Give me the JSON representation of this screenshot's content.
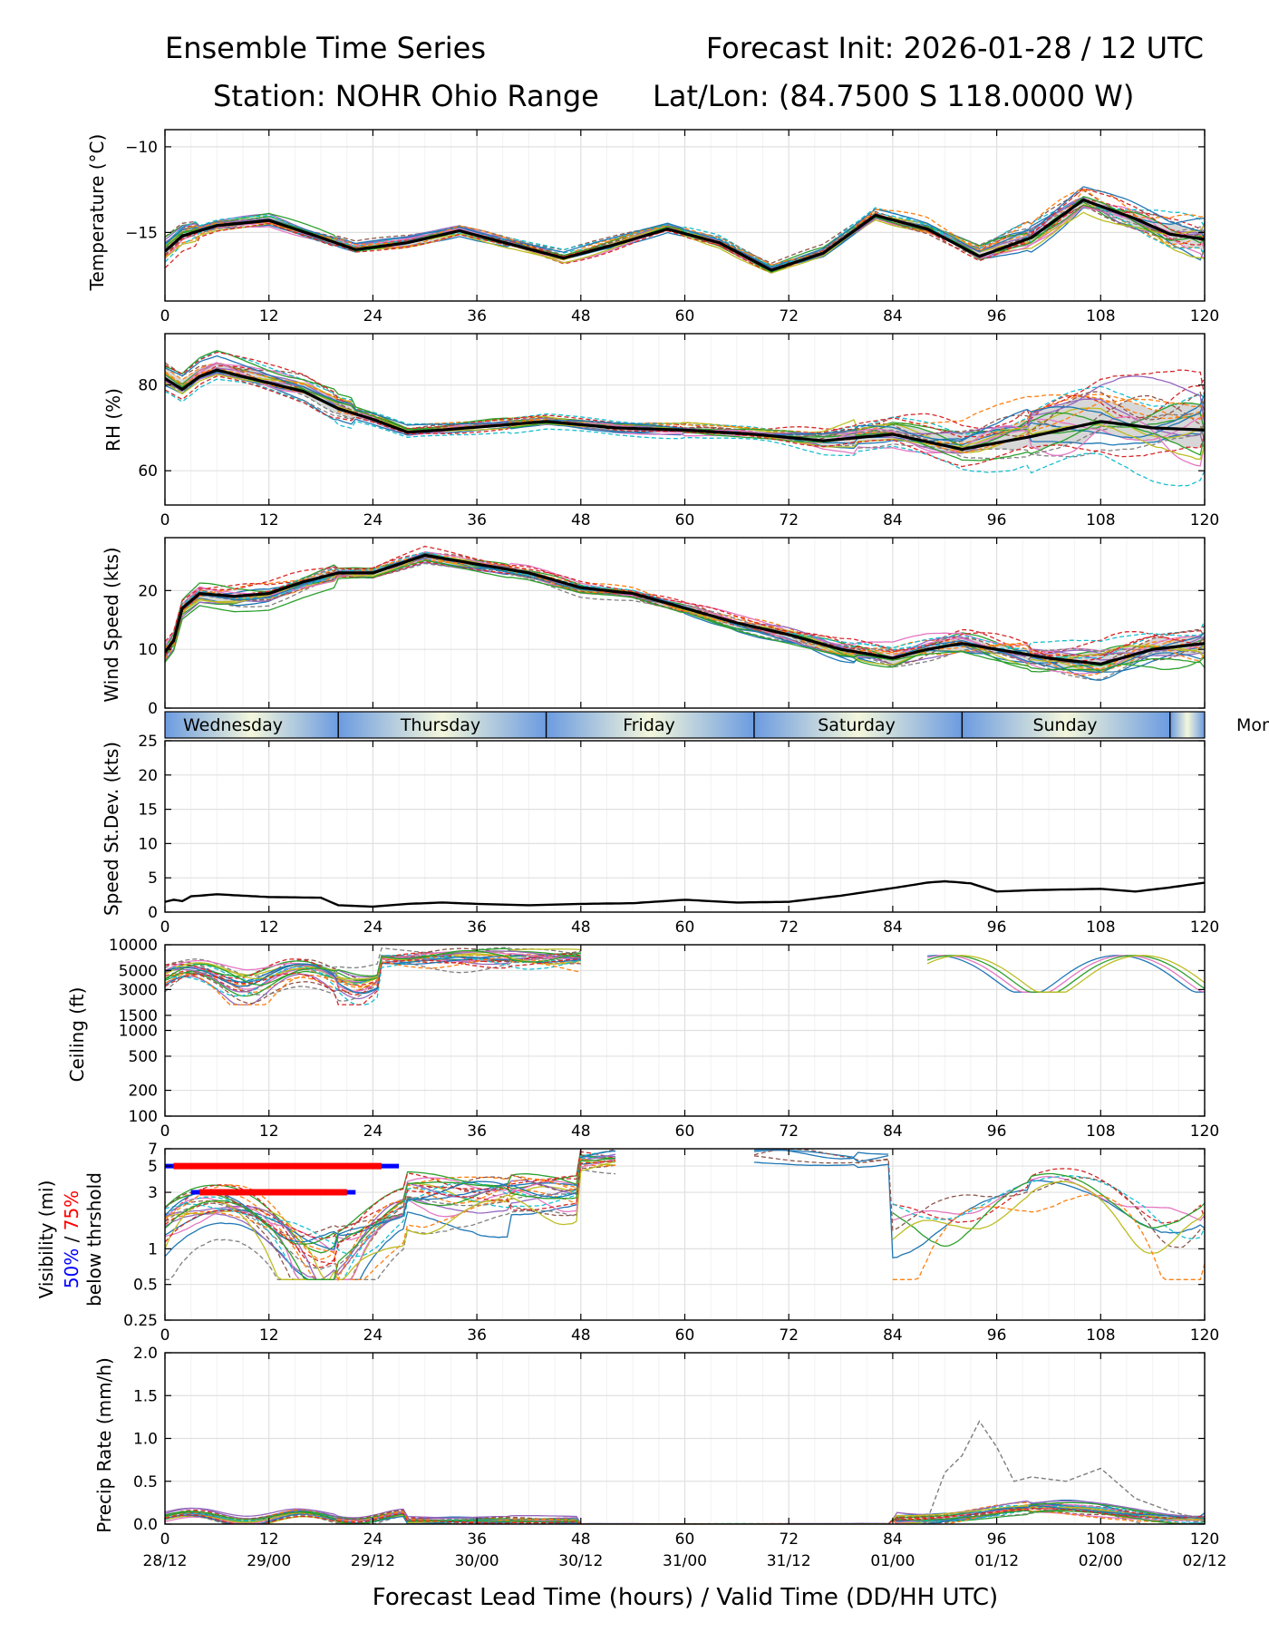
{
  "header": {
    "title_left": "Ensemble Time Series",
    "title_right": "Forecast Init: 2026-01-28 / 12 UTC",
    "station": "Station: NOHR Ohio Range",
    "latlon": "Lat/Lon: (84.7500 S 118.0000 W)"
  },
  "xaxis": {
    "label": "Forecast Lead Time (hours) / Valid Time (DD/HH UTC)",
    "range": [
      0,
      120
    ],
    "ticks": [
      0,
      12,
      24,
      36,
      48,
      60,
      72,
      84,
      96,
      108,
      120
    ],
    "tick_labels": [
      "0",
      "12",
      "24",
      "36",
      "48",
      "60",
      "72",
      "84",
      "96",
      "108",
      "120"
    ],
    "valid_labels": [
      "28/12",
      "29/00",
      "29/12",
      "30/00",
      "30/12",
      "31/00",
      "31/12",
      "01/00",
      "01/12",
      "02/00",
      "02/12"
    ]
  },
  "days": {
    "labels": [
      "Wednesday",
      "Thursday",
      "Friday",
      "Saturday",
      "Sunday",
      "Mon"
    ],
    "boundaries_h": [
      20,
      44,
      68,
      92,
      116
    ]
  },
  "vis_label": {
    "line1": "Visibility (mi)",
    "pct50": "50%",
    "sep": " / ",
    "pct75": "75%",
    "line3": "below thrshold"
  },
  "colors": {
    "members": [
      "#1f77b4",
      "#ff7f0e",
      "#2ca02c",
      "#d62728",
      "#9467bd",
      "#8c564b",
      "#e377c2",
      "#7f7f7f",
      "#bcbd22",
      "#17becf"
    ],
    "mean": "#000000",
    "spread": "#d3d3d3",
    "p50": "#0000ff",
    "p75": "#ff0000",
    "daygrad_a": "#6b9be0",
    "daygrad_b": "#f4f7dc"
  },
  "chart_data": [
    {
      "type": "line",
      "title": "Temperature",
      "ylabel": "Temperature (°C)",
      "ylim": [
        -19,
        -9
      ],
      "yticks": [
        -15,
        -10
      ],
      "ytick_labels": [
        "−15",
        "−10"
      ],
      "members": 24,
      "mean": {
        "x": [
          0,
          2,
          6,
          12,
          18,
          22,
          28,
          34,
          40,
          46,
          52,
          58,
          64,
          70,
          76,
          82,
          88,
          94,
          100,
          106,
          112,
          116,
          120
        ],
        "y": [
          -16.1,
          -15.2,
          -14.6,
          -14.3,
          -15.3,
          -16.0,
          -15.6,
          -14.9,
          -15.7,
          -16.5,
          -15.7,
          -14.8,
          -15.6,
          -17.2,
          -16.2,
          -14.0,
          -14.8,
          -16.4,
          -15.3,
          -13.1,
          -14.2,
          -15.1,
          -15.4
        ]
      }
    },
    {
      "type": "line",
      "title": "RH",
      "ylabel": "RH (%)",
      "ylim": [
        52,
        92
      ],
      "yticks": [
        60,
        80
      ],
      "ytick_labels": [
        "60",
        "80"
      ],
      "members": 24,
      "mean": {
        "x": [
          0,
          2,
          4,
          6,
          10,
          16,
          20,
          24,
          28,
          32,
          38,
          44,
          52,
          60,
          68,
          76,
          84,
          92,
          100,
          108,
          114,
          120
        ],
        "y": [
          81.5,
          79.0,
          82.0,
          83.5,
          81.5,
          78.5,
          74.5,
          72.0,
          69.0,
          69.5,
          70.5,
          71.5,
          70.0,
          69.5,
          68.5,
          67.0,
          68.5,
          65.0,
          68.0,
          71.5,
          70.0,
          69.5
        ]
      }
    },
    {
      "type": "line",
      "title": "Wind Speed",
      "ylabel": "Wind Speed (kts)",
      "ylim": [
        0,
        29
      ],
      "yticks": [
        0,
        10,
        20
      ],
      "ytick_labels": [
        "0",
        "10",
        "20"
      ],
      "members": 24,
      "mean": {
        "x": [
          0,
          1,
          2,
          4,
          8,
          12,
          16,
          20,
          24,
          28,
          30,
          36,
          42,
          48,
          54,
          60,
          66,
          72,
          78,
          84,
          88,
          92,
          96,
          102,
          108,
          114,
          120
        ],
        "y": [
          9.5,
          11.5,
          17.0,
          19.5,
          19.0,
          19.5,
          21.5,
          23.0,
          23.0,
          25.0,
          26.0,
          24.5,
          23.0,
          20.5,
          19.5,
          17.0,
          14.5,
          12.5,
          10.0,
          8.5,
          10.0,
          11.0,
          10.0,
          8.5,
          7.5,
          10.0,
          11.0
        ]
      }
    },
    {
      "type": "line",
      "title": "Speed St.Dev.",
      "ylabel": "Speed St.Dev. (kts)",
      "ylim": [
        0,
        25
      ],
      "yticks": [
        0,
        5,
        10,
        15,
        20,
        25
      ],
      "ytick_labels": [
        "0",
        "5",
        "10",
        "15",
        "20",
        "25"
      ],
      "series": [
        {
          "name": "Speed St.Dev.",
          "x": [
            0,
            1,
            2,
            3,
            6,
            12,
            18,
            20,
            24,
            28,
            32,
            36,
            42,
            48,
            54,
            60,
            66,
            72,
            78,
            84,
            88,
            90,
            93,
            96,
            100,
            108,
            112,
            116,
            120
          ],
          "y": [
            1.5,
            1.8,
            1.6,
            2.3,
            2.6,
            2.2,
            2.1,
            1.0,
            0.8,
            1.2,
            1.4,
            1.2,
            1.0,
            1.2,
            1.3,
            1.8,
            1.4,
            1.5,
            2.4,
            3.5,
            4.3,
            4.5,
            4.2,
            3.0,
            3.2,
            3.4,
            3.0,
            3.6,
            4.3
          ]
        }
      ]
    },
    {
      "type": "line",
      "title": "Ceiling",
      "ylabel": "Ceiling (ft)",
      "ylim": [
        100,
        10000
      ],
      "yscale": "log",
      "yticks": [
        100,
        200,
        500,
        1000,
        1500,
        3000,
        5000,
        10000
      ],
      "ytick_labels": [
        "100",
        "200",
        "500",
        "1000",
        "1500",
        "3000",
        "5000",
        "10000"
      ],
      "members": 24,
      "segments_h": [
        [
          0,
          50
        ],
        [
          88,
          120
        ]
      ]
    },
    {
      "type": "line",
      "title": "Visibility",
      "ylabel": "Visibility (mi) 50% / 75% below thrshold",
      "ylim": [
        0.25,
        7
      ],
      "yscale": "log",
      "yticks": [
        0.25,
        0.5,
        1,
        3,
        5,
        7
      ],
      "ytick_labels": [
        "0.25",
        "0.5",
        "1",
        "3",
        "5",
        "7"
      ],
      "members": 24,
      "thresholds": [
        {
          "level": 5,
          "p50_h": [
            0,
            27
          ],
          "p75_h": [
            1,
            25
          ]
        },
        {
          "level": 3,
          "p50_h": [
            3,
            22
          ],
          "p75_h": [
            4,
            21
          ]
        }
      ]
    },
    {
      "type": "line",
      "title": "Precip Rate",
      "ylabel": "Precip Rate (mm/h)",
      "ylim": [
        0,
        2.0
      ],
      "yticks": [
        0.0,
        0.5,
        1.0,
        1.5,
        2.0
      ],
      "ytick_labels": [
        "0.0",
        "0.5",
        "1.0",
        "1.5",
        "2.0"
      ],
      "members": 24,
      "max_member": {
        "x": [
          88,
          90,
          92,
          94,
          96,
          98,
          100,
          104,
          108,
          112,
          116,
          120
        ],
        "y": [
          0.05,
          0.6,
          0.8,
          1.2,
          0.9,
          0.5,
          0.55,
          0.5,
          0.65,
          0.3,
          0.15,
          0.05
        ]
      }
    }
  ]
}
